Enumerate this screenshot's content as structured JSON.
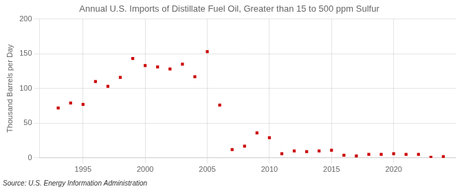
{
  "chart_data": {
    "type": "scatter",
    "title": "Annual U.S. Imports of Distillate Fuel Oil, Greater than 15 to 500 ppm Sulfur",
    "ylabel": "Thousand Barrels per Day",
    "annotations": [
      "Source: U.S. Energy Information Administration"
    ],
    "color": "#cc0000",
    "marker": "square",
    "grid": true,
    "xlim": [
      1991.5,
      2025
    ],
    "ylim": [
      0,
      200
    ],
    "xticks": [
      1995,
      2000,
      2005,
      2010,
      2015,
      2020
    ],
    "yticks": [
      0,
      50,
      100,
      150,
      200
    ],
    "x": [
      1993,
      1994,
      1995,
      1996,
      1997,
      1998,
      1999,
      2000,
      2001,
      2002,
      2003,
      2004,
      2005,
      2006,
      2007,
      2008,
      2009,
      2010,
      2011,
      2012,
      2013,
      2014,
      2015,
      2016,
      2017,
      2018,
      2019,
      2020,
      2021,
      2022,
      2023,
      2024
    ],
    "values": [
      72,
      79,
      77,
      110,
      103,
      116,
      143,
      133,
      131,
      128,
      135,
      117,
      153,
      76,
      12,
      17,
      36,
      29,
      6,
      10,
      9,
      10,
      11,
      4,
      3,
      5,
      5,
      6,
      5,
      5,
      1,
      2
    ]
  }
}
